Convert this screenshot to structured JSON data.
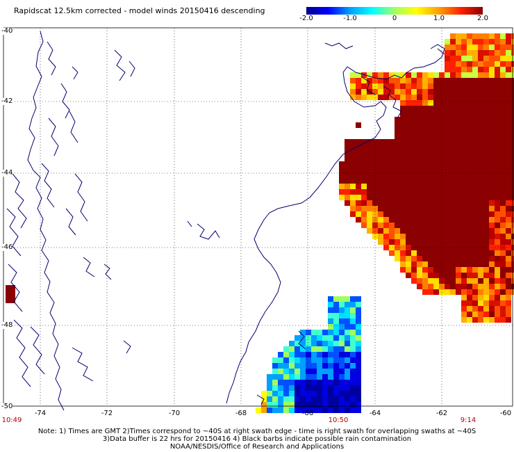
{
  "header": {
    "title": "Rapidscat 12.5km corrected - model winds 20150416 descending"
  },
  "colorbar": {
    "ticks": [
      "-2.0",
      "-1.0",
      "0",
      "1.0",
      "2.0"
    ],
    "tick_values": [
      -2.0,
      -1.0,
      0,
      1.0,
      2.0
    ],
    "min": -2.0,
    "max": 2.0,
    "colors": [
      "#00008f",
      "#0000ff",
      "#00a0ff",
      "#00ffff",
      "#a0ff60",
      "#ffff00",
      "#ffa000",
      "#ff2000",
      "#8b0000"
    ]
  },
  "map": {
    "lon_range": [
      -75,
      -60
    ],
    "lat_range": [
      -50,
      -40
    ],
    "lat_labels": [
      "-40",
      "-42",
      "-44",
      "-46",
      "-48",
      "-50"
    ],
    "lon_labels": [
      "-74",
      "-72",
      "-70",
      "-68",
      "-66",
      "-64",
      "-62",
      "-60"
    ],
    "grid": "dotted",
    "coast_color": "#00006e",
    "land_color": "#ffffff"
  },
  "swath_times": {
    "left": "10:49",
    "middle": "10:50",
    "right": "9:14"
  },
  "notes": [
    "Note: 1) Times are GMT 2)Times correspond to ~40S at right swath edge - time is right swath for overlapping swaths at ~40S",
    "3)Data buffer is 22 hrs for 20150416 4) Black barbs indicate possible rain contamination",
    "NOAA/NESDIS/Office of Research and Applications"
  ]
}
